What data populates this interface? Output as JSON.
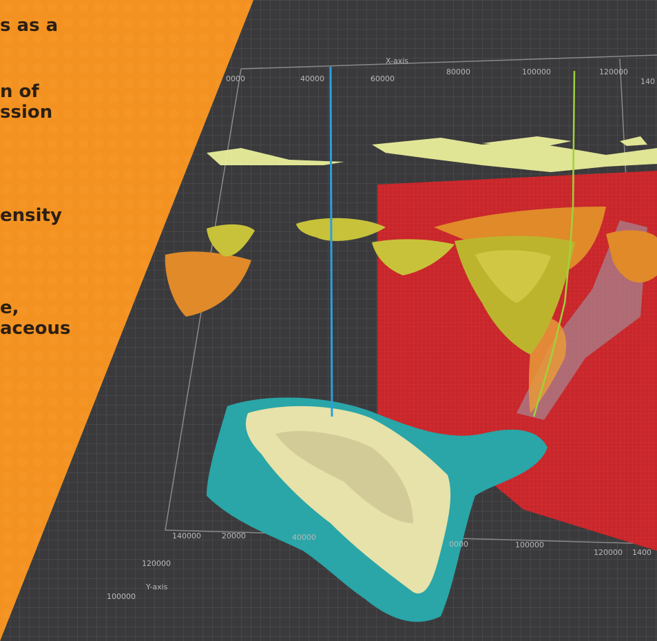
{
  "banner": {
    "lines": [
      "s as a",
      "n of",
      "ssion",
      "ensity",
      "e,",
      "aceous"
    ]
  },
  "axes": {
    "x_title": "X-axis",
    "y_title": "Y-axis",
    "x_top_ticks": [
      "0000",
      "40000",
      "60000",
      "80000",
      "100000",
      "120000",
      "140"
    ],
    "x_bottom_ticks": [
      "20000",
      "40000",
      "0000",
      "100000",
      "120000",
      "1400"
    ],
    "y_ticks": [
      "140000",
      "120000",
      "100000"
    ]
  },
  "colors": {
    "background": "#3a3a3c",
    "banner": "#f39220",
    "red_section": "#c8262a",
    "teal_body": "#2aa5a8",
    "yellow_body": "#c8c23a",
    "orange_body": "#e08a2a",
    "pale_layer": "#e9ee9a",
    "well_blue": "#2aa0e0",
    "well_green": "#9fd23a"
  }
}
